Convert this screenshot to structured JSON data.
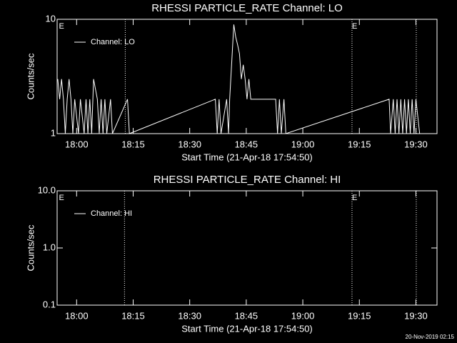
{
  "chart_data": [
    {
      "type": "line",
      "title": "RHESSI PARTICLE_RATE Channel: LO",
      "y_label": "Counts/sec",
      "x_label": "Start Time (21-Apr-18 17:54:50)",
      "x": [
        1075,
        1075.5,
        1076,
        1076.5,
        1077,
        1077.5,
        1078,
        1078.5,
        1079,
        1079.5,
        1080.5,
        1081,
        1082,
        1082.5,
        1083,
        1083.5,
        1084,
        1084.5,
        1085.5,
        1086,
        1086.5,
        1087,
        1087.5,
        1088,
        1089,
        1089.5,
        1093.5,
        1094,
        1116.8,
        1117.3,
        1117.8,
        1118.3,
        1119.8,
        1120.3,
        1120.6,
        1121.7,
        1122.2,
        1122.7,
        1123.2,
        1123.7,
        1124.2,
        1124.7,
        1125.2,
        1125.7,
        1126.2,
        1132.8,
        1133.3,
        1133.8,
        1134.3,
        1135,
        1135.5,
        1162.9,
        1163.3,
        1164,
        1164.5,
        1165,
        1165.5,
        1166,
        1166.5,
        1167,
        1167.5,
        1168,
        1168.5,
        1169,
        1169.5,
        1170,
        1171
      ],
      "series": [
        {
          "name": "Channel: LO",
          "color": "#ffffff",
          "values": [
            3,
            2,
            3,
            2,
            1,
            2,
            3,
            2,
            1,
            2,
            1,
            2,
            1,
            2,
            1,
            2,
            1,
            3,
            2,
            1,
            2,
            1,
            2,
            1,
            2,
            1,
            2,
            1,
            2,
            1,
            2,
            1,
            2,
            1,
            2,
            9,
            7,
            6,
            5,
            3,
            4,
            3,
            2,
            3,
            2,
            2,
            1,
            2,
            1,
            2,
            1,
            2,
            1,
            2,
            1,
            2,
            1,
            2,
            1,
            2,
            1,
            2,
            1,
            2,
            1,
            2,
            1
          ]
        }
      ],
      "xlim": [
        1074.83,
        1175.6
      ],
      "ylim": [
        1,
        10
      ],
      "log_y": true,
      "xticks": [
        {
          "value": 1080,
          "label": "18:00"
        },
        {
          "value": 1095,
          "label": "18:15"
        },
        {
          "value": 1110,
          "label": "18:30"
        },
        {
          "value": 1125,
          "label": "18:45"
        },
        {
          "value": 1140,
          "label": "19:00"
        },
        {
          "value": 1155,
          "label": "19:15"
        },
        {
          "value": 1170,
          "label": "19:30"
        }
      ],
      "yticks": [
        1,
        10
      ],
      "event_lines": [
        1092.9,
        1153.05,
        1170.1
      ],
      "flags": [
        {
          "x": 1075.3,
          "label": "E"
        },
        {
          "x": 1153.05,
          "label": "E"
        }
      ]
    },
    {
      "type": "line",
      "title": "RHESSI PARTICLE_RATE Channel: HI",
      "y_label": "Counts/sec",
      "x_label": "Start Time (21-Apr-18 17:54:50)",
      "x": [],
      "series": [
        {
          "name": "Channel: HI",
          "color": "#ffffff",
          "values": []
        }
      ],
      "xlim": [
        1074.83,
        1175.6
      ],
      "ylim": [
        0.1,
        10
      ],
      "log_y": true,
      "xticks": [
        {
          "value": 1080,
          "label": "18:00"
        },
        {
          "value": 1095,
          "label": "18:15"
        },
        {
          "value": 1110,
          "label": "18:30"
        },
        {
          "value": 1125,
          "label": "18:45"
        },
        {
          "value": 1140,
          "label": "19:00"
        },
        {
          "value": 1155,
          "label": "19:15"
        },
        {
          "value": 1170,
          "label": "19:30"
        }
      ],
      "yticks": [
        0.1,
        {
          "value": 1,
          "label": "1.0"
        },
        {
          "value": 10,
          "label": "10.0"
        }
      ],
      "event_lines": [
        1092.7,
        1153.05,
        1170.1
      ],
      "flags": [
        {
          "x": 1075.3,
          "label": "E"
        },
        {
          "x": 1153.05,
          "label": "E"
        }
      ]
    }
  ],
  "footer": "20-Nov-2019 02:15"
}
